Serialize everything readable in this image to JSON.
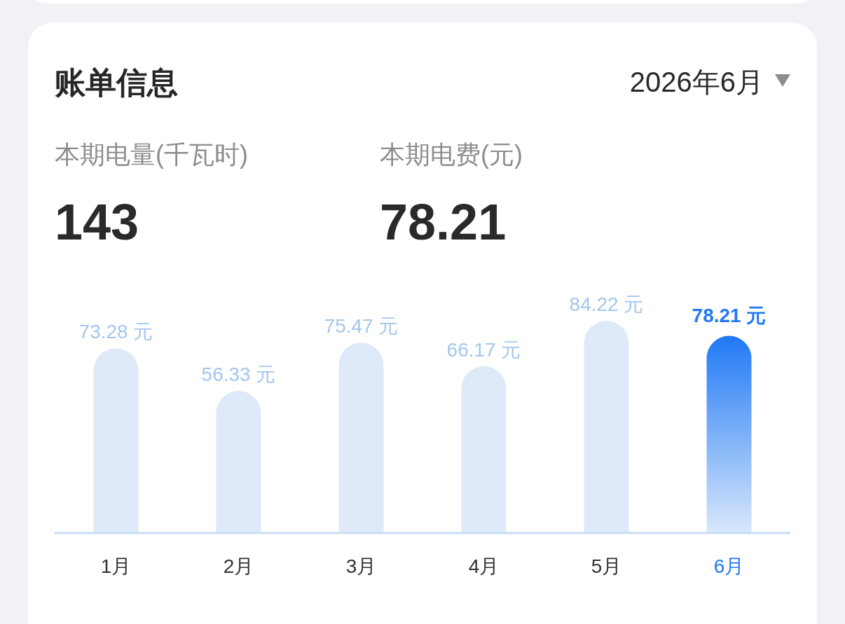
{
  "chart_data": {
    "type": "bar",
    "title": "账单信息",
    "subtitle": "2026年6月",
    "categories": [
      "1月",
      "2月",
      "3月",
      "4月",
      "5月",
      "6月"
    ],
    "values": [
      73.28,
      56.33,
      75.47,
      66.17,
      84.22,
      78.21
    ],
    "colors": [
      "#dfeaf9",
      "#dfeaf9",
      "#dfeaf9",
      "#dfeaf9",
      "#dfeaf9",
      "#2079f5"
    ],
    "value_labels": [
      "73.28 元",
      "56.33 元",
      "75.47 元",
      "66.17 元",
      "84.22 元",
      "78.21 元"
    ],
    "annotations": [
      "本期电量(千瓦时)",
      "143",
      "本期电费(元)",
      "78.21"
    ]
  }
}
